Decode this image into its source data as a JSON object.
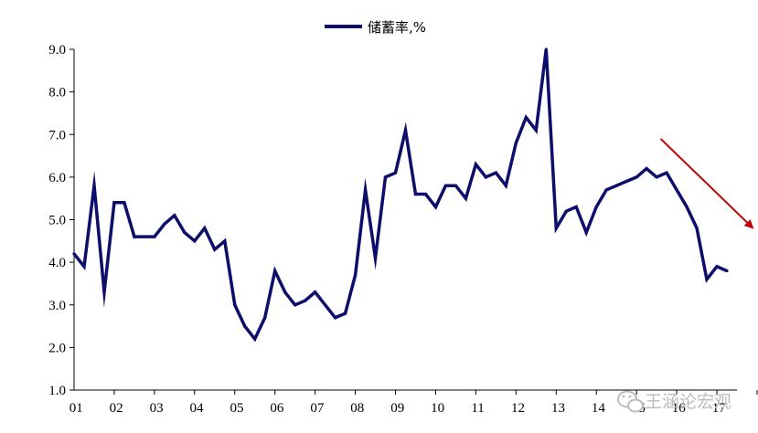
{
  "chart_data": {
    "type": "line",
    "title": "",
    "xlabel": "",
    "ylabel": "",
    "ylim": [
      1.0,
      9.0
    ],
    "y_ticks": [
      "1.0",
      "2.0",
      "3.0",
      "4.0",
      "5.0",
      "6.0",
      "7.0",
      "8.0",
      "9.0"
    ],
    "x_tick_labels": [
      "01",
      "02",
      "03",
      "04",
      "05",
      "06",
      "07",
      "08",
      "09",
      "10",
      "11",
      "12",
      "13",
      "14",
      "15",
      "16",
      "17"
    ],
    "grid": false,
    "legend_position": "top-center",
    "series": [
      {
        "name": "储蓄率,%",
        "color": "#0d0d6b",
        "x": [
          2001.0,
          2001.25,
          2001.5,
          2001.75,
          2002.0,
          2002.25,
          2002.5,
          2002.75,
          2003.0,
          2003.25,
          2003.5,
          2003.75,
          2004.0,
          2004.25,
          2004.5,
          2004.75,
          2005.0,
          2005.25,
          2005.5,
          2005.75,
          2006.0,
          2006.25,
          2006.5,
          2006.75,
          2007.0,
          2007.25,
          2007.5,
          2007.75,
          2008.0,
          2008.25,
          2008.5,
          2008.75,
          2009.0,
          2009.25,
          2009.5,
          2009.75,
          2010.0,
          2010.25,
          2010.5,
          2010.75,
          2011.0,
          2011.25,
          2011.5,
          2011.75,
          2012.0,
          2012.25,
          2012.5,
          2012.75,
          2013.0,
          2013.25,
          2013.5,
          2013.75,
          2014.0,
          2014.25,
          2014.5,
          2014.75,
          2015.0,
          2015.25,
          2015.5,
          2015.75,
          2016.0,
          2016.25,
          2016.5,
          2016.75,
          2017.0,
          2017.25
        ],
        "values": [
          4.2,
          3.9,
          5.8,
          3.3,
          5.4,
          5.4,
          4.6,
          4.6,
          4.6,
          4.9,
          5.1,
          4.7,
          4.5,
          4.8,
          4.3,
          4.5,
          3.0,
          2.5,
          2.2,
          2.7,
          3.8,
          3.3,
          3.0,
          3.1,
          3.3,
          3.0,
          2.7,
          2.8,
          3.7,
          5.7,
          4.1,
          6.0,
          6.1,
          7.1,
          5.6,
          5.6,
          5.3,
          5.8,
          5.8,
          5.5,
          6.3,
          6.0,
          6.1,
          5.8,
          6.8,
          7.4,
          7.1,
          9.0,
          4.8,
          5.2,
          5.3,
          4.7,
          5.3,
          5.7,
          5.8,
          5.9,
          6.0,
          6.2,
          6.0,
          6.1,
          5.7,
          5.3,
          4.8,
          3.6,
          3.9,
          3.8
        ]
      }
    ],
    "annotations": [
      {
        "type": "arrow",
        "color": "#c00000",
        "from": {
          "x": 2015.6,
          "y": 6.9
        },
        "to": {
          "x": 2017.9,
          "y": 4.8
        }
      }
    ]
  },
  "watermark": {
    "text": "王涵论宏观",
    "icon": "wechat-icon"
  }
}
